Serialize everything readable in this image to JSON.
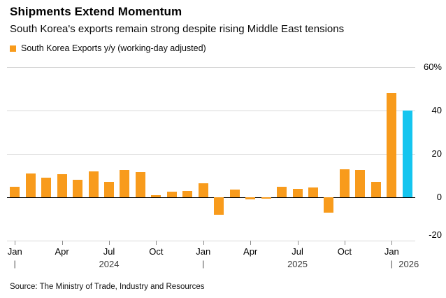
{
  "header": {
    "title": "Shipments Extend Momentum",
    "subtitle": "South Korea's exports remain strong despite rising Middle East tensions"
  },
  "legend": {
    "label": "South Korea Exports y/y (working-day adjusted)",
    "swatch_color": "#F89B1C"
  },
  "source": "Source: The Ministry of Trade, Industry and Resources",
  "chart_data": {
    "type": "bar",
    "title": "Shipments Extend Momentum",
    "subtitle": "South Korea's exports remain strong despite rising Middle East tensions",
    "series_name": "South Korea Exports y/y (working-day adjusted)",
    "xlabel": "",
    "ylabel": "",
    "unit": "%",
    "ylim": [
      -20,
      60
    ],
    "grid": true,
    "legend_position": "top-left",
    "series_color": "#F89B1C",
    "highlight_color": "#15C5EF",
    "highlight_index": 25,
    "categories": [
      "Jan 2024",
      "Feb 2024",
      "Mar 2024",
      "Apr 2024",
      "May 2024",
      "Jun 2024",
      "Jul 2024",
      "Aug 2024",
      "Sep 2024",
      "Oct 2024",
      "Nov 2024",
      "Dec 2024",
      "Jan 2025",
      "Feb 2025",
      "Mar 2025",
      "Apr 2025",
      "May 2025",
      "Jun 2025",
      "Jul 2025",
      "Aug 2025",
      "Sep 2025",
      "Oct 2025",
      "Nov 2025",
      "Dec 2025",
      "Jan 2026",
      "Feb 2026"
    ],
    "values": [
      5,
      11,
      9,
      10.5,
      8,
      12,
      7,
      12.5,
      11.5,
      1,
      2.5,
      3,
      6.5,
      -8,
      3.5,
      -1,
      -0.5,
      5,
      4,
      4.5,
      -7,
      13,
      12.5,
      7,
      48,
      40
    ],
    "yticks": [
      {
        "v": 60,
        "label": "60%"
      },
      {
        "v": 40,
        "label": "40"
      },
      {
        "v": 20,
        "label": "20"
      },
      {
        "v": 0,
        "label": "0"
      },
      {
        "v": -20,
        "label": "-20"
      }
    ],
    "xticks": [
      {
        "index": 0,
        "label": "Jan"
      },
      {
        "index": 3,
        "label": "Apr"
      },
      {
        "index": 6,
        "label": "Jul"
      },
      {
        "index": 9,
        "label": "Oct"
      },
      {
        "index": 12,
        "label": "Jan"
      },
      {
        "index": 15,
        "label": "Apr"
      },
      {
        "index": 18,
        "label": "Jul"
      },
      {
        "index": 21,
        "label": "Oct"
      },
      {
        "index": 24,
        "label": "Jan"
      }
    ],
    "year_dividers": [
      0,
      12,
      24
    ],
    "year_labels": [
      {
        "label": "2024",
        "center_index": 6
      },
      {
        "label": "2025",
        "center_index": 18
      },
      {
        "label": "2026",
        "after_index": 24
      }
    ]
  }
}
